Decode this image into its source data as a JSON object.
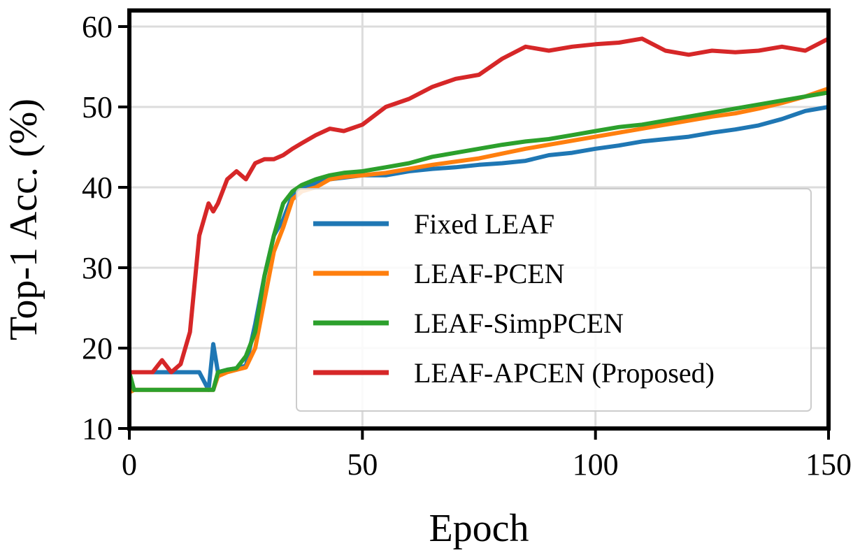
{
  "chart_data": {
    "type": "line",
    "title": "",
    "xlabel": "Epoch",
    "ylabel": "Top-1 Acc. (%)",
    "xlim": [
      0,
      150
    ],
    "ylim": [
      10,
      62
    ],
    "xticks": [
      0,
      50,
      100,
      150
    ],
    "yticks": [
      10,
      20,
      30,
      40,
      50,
      60
    ],
    "x_tick_labels": [
      "0",
      "50",
      "100",
      "150"
    ],
    "y_tick_labels": [
      "10",
      "20",
      "30",
      "40",
      "50",
      "60"
    ],
    "grid": true,
    "legend_position": "lower-right",
    "x": [
      0,
      1,
      3,
      5,
      7,
      9,
      11,
      13,
      15,
      17,
      18,
      19,
      21,
      23,
      25,
      27,
      29,
      31,
      33,
      35,
      37,
      40,
      43,
      46,
      50,
      55,
      60,
      65,
      70,
      75,
      80,
      85,
      90,
      95,
      100,
      105,
      110,
      115,
      120,
      125,
      130,
      135,
      140,
      145,
      150
    ],
    "series": [
      {
        "name": "Fixed LEAF",
        "color": "#1f77b4",
        "values": [
          17.0,
          17.0,
          17.0,
          17.0,
          17.0,
          17.0,
          17.0,
          17.0,
          17.0,
          14.8,
          20.5,
          17.0,
          17.3,
          17.5,
          17.8,
          23.0,
          29.0,
          34.0,
          36.0,
          39.0,
          40.0,
          40.5,
          41.0,
          41.2,
          41.5,
          41.5,
          42.0,
          42.3,
          42.5,
          42.8,
          43.0,
          43.3,
          44.0,
          44.3,
          44.8,
          45.2,
          45.7,
          46.0,
          46.3,
          46.8,
          47.2,
          47.7,
          48.5,
          49.5,
          50.0
        ]
      },
      {
        "name": "LEAF-PCEN",
        "color": "#ff7f0e",
        "values": [
          14.5,
          14.8,
          14.8,
          14.8,
          14.8,
          14.8,
          14.8,
          14.8,
          14.8,
          14.8,
          14.8,
          16.5,
          17.0,
          17.3,
          17.6,
          20.0,
          26.0,
          32.0,
          35.0,
          38.5,
          39.5,
          40.0,
          41.0,
          41.3,
          41.5,
          41.8,
          42.3,
          42.8,
          43.2,
          43.6,
          44.2,
          44.8,
          45.3,
          45.8,
          46.3,
          46.8,
          47.3,
          47.8,
          48.3,
          48.8,
          49.2,
          49.8,
          50.5,
          51.3,
          52.3
        ]
      },
      {
        "name": "LEAF-SimpPCEN",
        "color": "#2ca02c",
        "values": [
          17.0,
          14.8,
          14.8,
          14.8,
          14.8,
          14.8,
          14.8,
          14.8,
          14.8,
          14.8,
          14.8,
          17.0,
          17.3,
          17.5,
          19.0,
          22.0,
          29.0,
          34.0,
          38.0,
          39.5,
          40.3,
          41.0,
          41.5,
          41.8,
          42.0,
          42.5,
          43.0,
          43.8,
          44.3,
          44.8,
          45.3,
          45.7,
          46.0,
          46.5,
          47.0,
          47.5,
          47.8,
          48.3,
          48.8,
          49.3,
          49.8,
          50.3,
          50.8,
          51.3,
          51.8
        ]
      },
      {
        "name": "LEAF-APCEN (Proposed)",
        "color": "#d62728",
        "values": [
          17.0,
          17.0,
          17.0,
          17.0,
          18.5,
          17.0,
          18.0,
          22.0,
          34.0,
          38.0,
          37.0,
          38.0,
          41.0,
          42.0,
          41.0,
          43.0,
          43.5,
          43.5,
          44.0,
          44.8,
          45.5,
          46.5,
          47.3,
          47.0,
          47.8,
          50.0,
          51.0,
          52.5,
          53.5,
          54.0,
          56.0,
          57.5,
          57.0,
          57.5,
          57.8,
          58.0,
          58.5,
          57.0,
          56.5,
          57.0,
          56.8,
          57.0,
          57.5,
          57.0,
          58.5
        ]
      }
    ]
  }
}
